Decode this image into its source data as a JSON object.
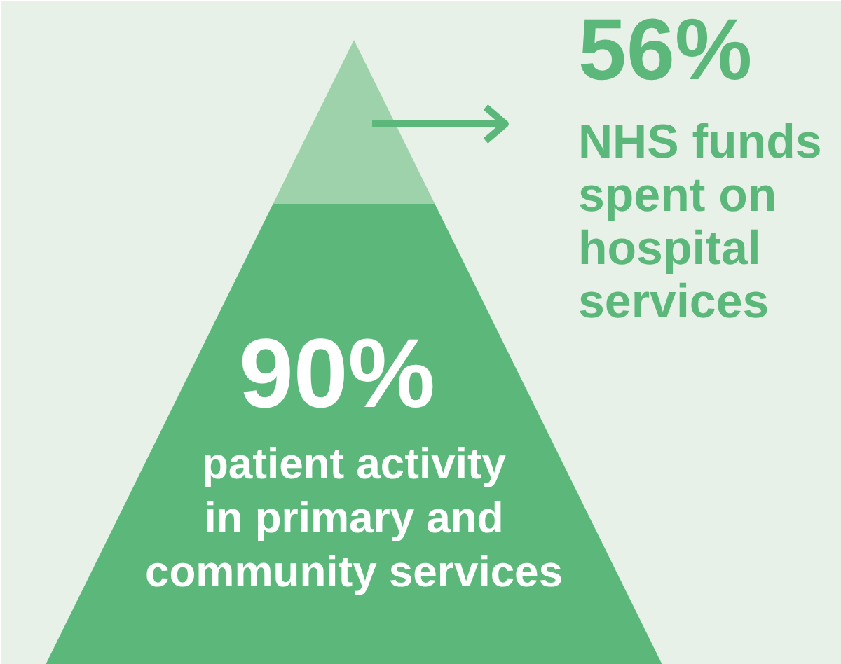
{
  "chart_data": {
    "type": "other",
    "categories": [
      "NHS funds\nspent on\nhospital\nservices",
      "patient activity\nin primary and\ncommunity services"
    ],
    "values": [
      56,
      90
    ],
    "value_labels": [
      "56%",
      "90%"
    ],
    "colors": [
      "#9dd2aa",
      "#5cb87a"
    ]
  }
}
